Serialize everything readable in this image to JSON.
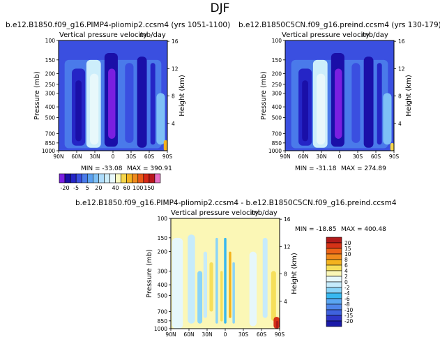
{
  "page": {
    "title": "DJF"
  },
  "colors": {
    "spectrum": [
      "#7a1fe0",
      "#1a0fa8",
      "#2525c6",
      "#3a4fe0",
      "#4a7aea",
      "#5aa0ef",
      "#7ec0f6",
      "#aedcfb",
      "#cdeefb",
      "#e8f8fb",
      "#fbfabf",
      "#f6d64a",
      "#f4b21f",
      "#f08a1c",
      "#ea5a18",
      "#d62816",
      "#b8161c",
      "#e770c4"
    ],
    "diff_spectrum": [
      "#7a1fe0",
      "#1a1aa8",
      "#2e36c8",
      "#3f62de",
      "#4f86ea",
      "#5aa6f2",
      "#37b8f0",
      "#8ad4f8",
      "#c6ebfb",
      "#e6f7fb",
      "#fbf7b6",
      "#f6df5a",
      "#f4b31e",
      "#f08a1c",
      "#ec6418",
      "#d63217",
      "#b01a1a",
      "#e770c4"
    ]
  },
  "chart_data": [
    {
      "type": "heatmap",
      "case_title": "b.e12.B1850.f09_g16.PIMP4-pliomip2.ccsm4  (yrs 1051-1100)",
      "panel_title": "Vertical pressure velocity",
      "units": "mb/day",
      "ylabel": "Pressure (mb)",
      "ylabel_right": "Height (km)",
      "pressure_ticks": [
        "100",
        "150",
        "200",
        "250",
        "300",
        "400",
        "500",
        "700",
        "850",
        "1000"
      ],
      "pressure_values": [
        100,
        150,
        200,
        250,
        300,
        400,
        500,
        700,
        850,
        1000
      ],
      "height_ticks": [
        "16",
        "12",
        "8",
        "4"
      ],
      "height_values": [
        16,
        12,
        8,
        4
      ],
      "lat_ticks": [
        "90N",
        "60N",
        "30N",
        "0",
        "30S",
        "60S",
        "90S"
      ],
      "lat_values": [
        90,
        60,
        30,
        0,
        -30,
        -60,
        -90
      ],
      "min_label": "MIN = -33.08",
      "max_label": "MAX = 390.91",
      "min": -33.08,
      "max": 390.91,
      "cells": [
        {
          "lat": [
            80,
            -80
          ],
          "p": [
            150,
            950
          ],
          "level": 4
        },
        {
          "lat": [
            68,
            46
          ],
          "p": [
            180,
            900
          ],
          "level": 2
        },
        {
          "lat": [
            62,
            52
          ],
          "p": [
            230,
            820
          ],
          "level": 1
        },
        {
          "lat": [
            44,
            20
          ],
          "p": [
            150,
            940
          ],
          "level": 8
        },
        {
          "lat": [
            38,
            24
          ],
          "p": [
            200,
            880
          ],
          "level": 9
        },
        {
          "lat": [
            14,
            -8
          ],
          "p": [
            130,
            920
          ],
          "level": 1
        },
        {
          "lat": [
            8,
            -4
          ],
          "p": [
            180,
            780
          ],
          "level": 0
        },
        {
          "lat": [
            -20,
            -34
          ],
          "p": [
            160,
            850
          ],
          "level": 3
        },
        {
          "lat": [
            -40,
            -56
          ],
          "p": [
            140,
            940
          ],
          "level": 1
        },
        {
          "lat": [
            -62,
            -70
          ],
          "p": [
            160,
            880
          ],
          "level": 2
        },
        {
          "lat": [
            -72,
            -86
          ],
          "p": [
            300,
            880
          ],
          "level": 6
        },
        {
          "lat": [
            -84,
            -90
          ],
          "p": [
            800,
            1000
          ],
          "level": 12
        }
      ]
    },
    {
      "type": "heatmap",
      "case_title": "b.e12.B1850C5CN.f09_g16.preind.ccsm4  (yrs 130-179)",
      "panel_title": "Vertical pressure velocity",
      "units": "mb/day",
      "ylabel": "Pressure (mb)",
      "ylabel_right": "Height (km)",
      "pressure_ticks": [
        "100",
        "150",
        "200",
        "250",
        "300",
        "400",
        "500",
        "700",
        "850",
        "1000"
      ],
      "pressure_values": [
        100,
        150,
        200,
        250,
        300,
        400,
        500,
        700,
        850,
        1000
      ],
      "height_ticks": [
        "16",
        "12",
        "8",
        "4"
      ],
      "height_values": [
        16,
        12,
        8,
        4
      ],
      "lat_ticks": [
        "90N",
        "60N",
        "30N",
        "0",
        "30S",
        "60S",
        "90S"
      ],
      "lat_values": [
        90,
        60,
        30,
        0,
        -30,
        -60,
        -90
      ],
      "min_label": "MIN = -31.18",
      "max_label": "MAX = 274.89",
      "min": -31.18,
      "max": 274.89,
      "cells": [
        {
          "lat": [
            80,
            -80
          ],
          "p": [
            150,
            950
          ],
          "level": 4
        },
        {
          "lat": [
            68,
            46
          ],
          "p": [
            180,
            900
          ],
          "level": 2
        },
        {
          "lat": [
            62,
            52
          ],
          "p": [
            230,
            820
          ],
          "level": 1
        },
        {
          "lat": [
            44,
            20
          ],
          "p": [
            150,
            940
          ],
          "level": 8
        },
        {
          "lat": [
            38,
            24
          ],
          "p": [
            200,
            880
          ],
          "level": 9
        },
        {
          "lat": [
            14,
            -8
          ],
          "p": [
            130,
            920
          ],
          "level": 1
        },
        {
          "lat": [
            8,
            -4
          ],
          "p": [
            180,
            780
          ],
          "level": 0
        },
        {
          "lat": [
            -20,
            -34
          ],
          "p": [
            160,
            850
          ],
          "level": 3
        },
        {
          "lat": [
            -40,
            -56
          ],
          "p": [
            140,
            940
          ],
          "level": 1
        },
        {
          "lat": [
            -62,
            -70
          ],
          "p": [
            160,
            880
          ],
          "level": 2
        },
        {
          "lat": [
            -72,
            -86
          ],
          "p": [
            300,
            880
          ],
          "level": 6
        },
        {
          "lat": [
            -84,
            -90
          ],
          "p": [
            850,
            1000
          ],
          "level": 11
        }
      ]
    },
    {
      "type": "heatmap",
      "case_title": "b.e12.B1850.f09_g16.PIMP4-pliomip2.ccsm4 - b.e12.B1850C5CN.f09_g16.preind.ccsm4",
      "panel_title": "Vertical pressure velocity",
      "units": "mb/day",
      "ylabel": "Pressure (mb)",
      "ylabel_right": "Height (km)",
      "pressure_ticks": [
        "100",
        "150",
        "200",
        "300",
        "400",
        "500",
        "700",
        "850",
        "1000"
      ],
      "pressure_values": [
        100,
        150,
        200,
        300,
        400,
        500,
        700,
        850,
        1000
      ],
      "height_ticks": [
        "16",
        "12",
        "8",
        "4"
      ],
      "height_values": [
        16,
        12,
        8,
        4
      ],
      "lat_ticks": [
        "90N",
        "60N",
        "30N",
        "0",
        "30S",
        "60S",
        "90S"
      ],
      "lat_values": [
        90,
        60,
        30,
        0,
        -30,
        -60,
        -90
      ],
      "min_label": "MIN = -18.85",
      "max_label": "MAX = 400.48",
      "min": -18.85,
      "max": 400.48,
      "cells": [
        {
          "lat": [
            90,
            -90
          ],
          "p": [
            100,
            1000
          ],
          "level": 10
        },
        {
          "lat": [
            88,
            70
          ],
          "p": [
            150,
            1000
          ],
          "level": 9
        },
        {
          "lat": [
            62,
            50
          ],
          "p": [
            140,
            900
          ],
          "level": 8
        },
        {
          "lat": [
            46,
            38
          ],
          "p": [
            300,
            900
          ],
          "level": 7
        },
        {
          "lat": [
            36,
            30
          ],
          "p": [
            200,
            800
          ],
          "level": 8
        },
        {
          "lat": [
            26,
            20
          ],
          "p": [
            250,
            700
          ],
          "level": 11
        },
        {
          "lat": [
            16,
            12
          ],
          "p": [
            150,
            900
          ],
          "level": 7
        },
        {
          "lat": [
            8,
            4
          ],
          "p": [
            300,
            860
          ],
          "level": 11
        },
        {
          "lat": [
            2,
            -2
          ],
          "p": [
            150,
            900
          ],
          "level": 6
        },
        {
          "lat": [
            -6,
            -10
          ],
          "p": [
            200,
            800
          ],
          "level": 12
        },
        {
          "lat": [
            -12,
            -16
          ],
          "p": [
            250,
            900
          ],
          "level": 7
        },
        {
          "lat": [
            -40,
            -52
          ],
          "p": [
            200,
            950
          ],
          "level": 9
        },
        {
          "lat": [
            -62,
            -70
          ],
          "p": [
            150,
            800
          ],
          "level": 8
        },
        {
          "lat": [
            -76,
            -84
          ],
          "p": [
            300,
            850
          ],
          "level": 11
        },
        {
          "lat": [
            -80,
            -90
          ],
          "p": [
            780,
            1000
          ],
          "level": 15
        },
        {
          "lat": [
            -84,
            -88
          ],
          "p": [
            850,
            1000
          ],
          "level": 16
        }
      ]
    }
  ],
  "colorbar_bottom": {
    "labels": [
      "-20",
      "-5",
      "5",
      "20",
      "40",
      "60",
      "100",
      "150"
    ],
    "n_boxes": 18
  },
  "colorbar_diff": {
    "labels": [
      "20",
      "15",
      "10",
      "8",
      "6",
      "4",
      "2",
      "0",
      "-2",
      "-4",
      "-6",
      "-8",
      "-10",
      "-15",
      "-20"
    ],
    "n_boxes": 16
  }
}
